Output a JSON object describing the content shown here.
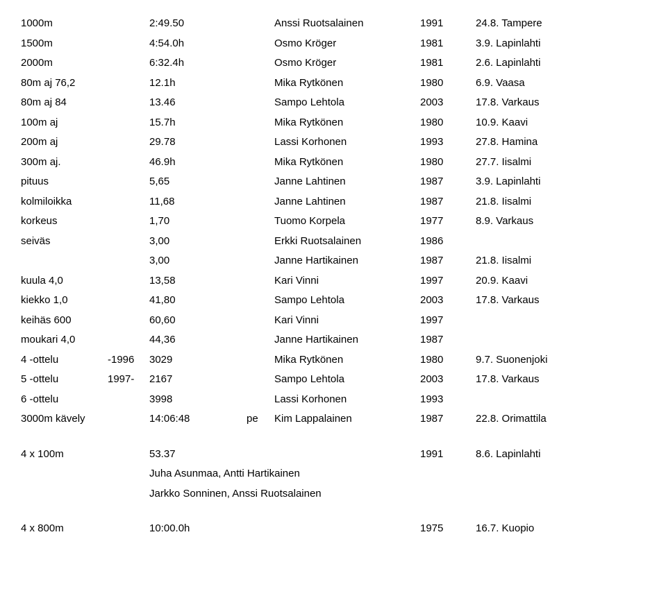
{
  "rows": [
    {
      "c1": "1000m",
      "c2": "",
      "c3": "2:49.50",
      "c4": "",
      "c5": "Anssi Ruotsalainen",
      "c6": "1991",
      "c7": "24.8. Tampere"
    },
    {
      "c1": "1500m",
      "c2": "",
      "c3": "4:54.0h",
      "c4": "",
      "c5": "Osmo Kröger",
      "c6": "1981",
      "c7": "3.9. Lapinlahti"
    },
    {
      "c1": "2000m",
      "c2": "",
      "c3": "6:32.4h",
      "c4": "",
      "c5": "Osmo Kröger",
      "c6": "1981",
      "c7": "2.6. Lapinlahti"
    },
    {
      "c1": "80m aj 76,2",
      "c2": "",
      "c3": "12.1h",
      "c4": "",
      "c5": "Mika Rytkönen",
      "c6": "1980",
      "c7": "6.9. Vaasa"
    },
    {
      "c1": "80m aj 84",
      "c2": "",
      "c3": "13.46",
      "c4": "",
      "c5": "Sampo Lehtola",
      "c6": "2003",
      "c7": "17.8. Varkaus"
    },
    {
      "c1": "100m aj",
      "c2": "",
      "c3": "15.7h",
      "c4": "",
      "c5": "Mika Rytkönen",
      "c6": "1980",
      "c7": "10.9. Kaavi"
    },
    {
      "c1": "200m aj",
      "c2": "",
      "c3": "29.78",
      "c4": "",
      "c5": "Lassi Korhonen",
      "c6": "1993",
      "c7": "27.8. Hamina"
    },
    {
      "c1": "300m aj.",
      "c2": "",
      "c3": "46.9h",
      "c4": "",
      "c5": "Mika Rytkönen",
      "c6": "1980",
      "c7": "27.7. Iisalmi"
    },
    {
      "c1": "pituus",
      "c2": "",
      "c3": "5,65",
      "c4": "",
      "c5": "Janne Lahtinen",
      "c6": "1987",
      "c7": "3.9. Lapinlahti"
    },
    {
      "c1": "kolmiloikka",
      "c2": "",
      "c3": "11,68",
      "c4": "",
      "c5": "Janne Lahtinen",
      "c6": "1987",
      "c7": "21.8. Iisalmi"
    },
    {
      "c1": "korkeus",
      "c2": "",
      "c3": "1,70",
      "c4": "",
      "c5": "Tuomo Korpela",
      "c6": "1977",
      "c7": "8.9. Varkaus"
    },
    {
      "c1": "seiväs",
      "c2": "",
      "c3": "3,00",
      "c4": "",
      "c5": "Erkki Ruotsalainen",
      "c6": "1986",
      "c7": ""
    },
    {
      "c1": "",
      "c2": "",
      "c3": "3,00",
      "c4": "",
      "c5": "Janne Hartikainen",
      "c6": "1987",
      "c7": "21.8. Iisalmi",
      "indent": true
    },
    {
      "c1": "kuula 4,0",
      "c2": "",
      "c3": "13,58",
      "c4": "",
      "c5": "Kari Vinni",
      "c6": "1997",
      "c7": "20.9. Kaavi"
    },
    {
      "c1": "kiekko 1,0",
      "c2": "",
      "c3": "41,80",
      "c4": "",
      "c5": "Sampo Lehtola",
      "c6": "2003",
      "c7": "17.8. Varkaus"
    },
    {
      "c1": "keihäs 600",
      "c2": "",
      "c3": "60,60",
      "c4": "",
      "c5": "Kari Vinni",
      "c6": "1997",
      "c7": ""
    },
    {
      "c1": "moukari 4,0",
      "c2": "",
      "c3": "44,36",
      "c4": "",
      "c5": "Janne Hartikainen",
      "c6": "1987",
      "c7": ""
    },
    {
      "c1": "4 -ottelu",
      "c2": "-1996",
      "c3": "3029",
      "c4": "",
      "c5": "Mika Rytkönen",
      "c6": "1980",
      "c7": "9.7. Suonenjoki"
    },
    {
      "c1": "5 -ottelu",
      "c2": "1997-",
      "c3": "2167",
      "c4": "",
      "c5": "Sampo Lehtola",
      "c6": "2003",
      "c7": "17.8. Varkaus"
    },
    {
      "c1": "6 -ottelu",
      "c2": "",
      "c3": "3998",
      "c4": "",
      "c5": "Lassi Korhonen",
      "c6": "1993",
      "c7": ""
    },
    {
      "c1": "3000m kävely",
      "c2": "",
      "c3": "14:06:48",
      "c4": "pe",
      "c5": "Kim Lappalainen",
      "c6": "1987",
      "c7": "22.8. Orimattila"
    }
  ],
  "relay": {
    "c1": "4 x 100m",
    "c3": "53.37",
    "c6": "1991",
    "c7": "8.6. Lapinlahti",
    "names1": "Juha Asunmaa, Antti Hartikainen",
    "names2": "Jarkko Sonninen, Anssi Ruotsalainen"
  },
  "relay2": {
    "c1": "4 x 800m",
    "c3": "10:00.0h",
    "c6": "1975",
    "c7": "16.7. Kuopio"
  }
}
